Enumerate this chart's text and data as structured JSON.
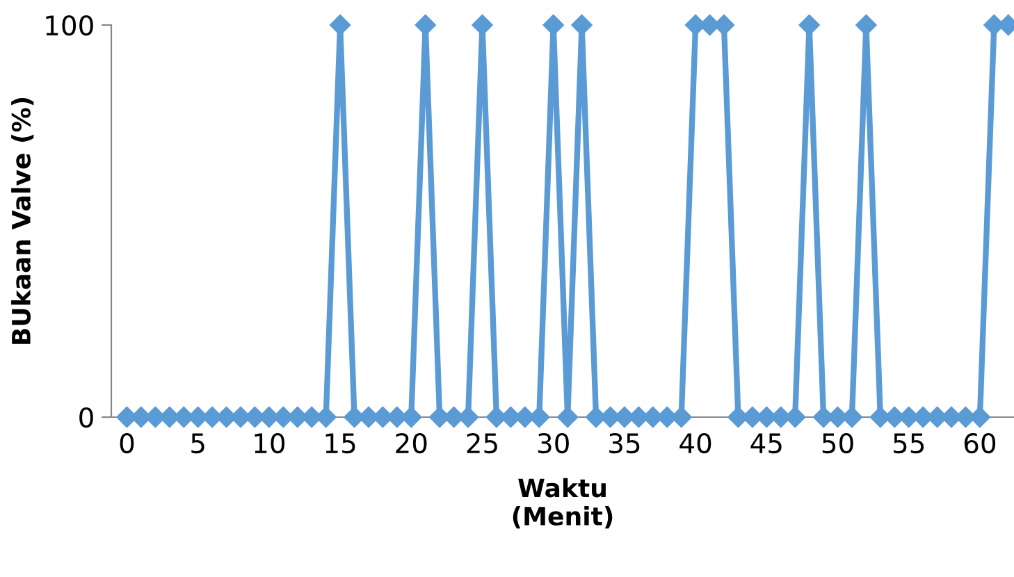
{
  "chart_data": {
    "type": "line",
    "xlabel": "Waktu\n(Menit)",
    "ylabel": "BUkaan Valve (%)",
    "categories": [
      "0",
      null,
      null,
      null,
      null,
      "5",
      null,
      null,
      null,
      null,
      "10",
      null,
      null,
      null,
      null,
      "15",
      null,
      null,
      null,
      null,
      "20",
      null,
      null,
      null,
      null,
      "25",
      null,
      null,
      null,
      null,
      "30",
      null,
      null,
      null,
      null,
      "35",
      null,
      null,
      null,
      null,
      "40",
      null,
      null,
      null,
      null,
      "45",
      null,
      null,
      null,
      null,
      "50",
      null,
      null,
      null,
      null,
      "55",
      null,
      null,
      null,
      null,
      "60",
      null,
      null
    ],
    "series": [
      {
        "color": "#5b9bd5",
        "values": [
          0,
          0,
          0,
          0,
          0,
          0,
          0,
          0,
          0,
          0,
          0,
          0,
          0,
          0,
          0,
          100,
          0,
          0,
          0,
          0,
          0,
          100,
          0,
          0,
          0,
          100,
          0,
          0,
          0,
          0,
          100,
          0,
          100,
          0,
          0,
          0,
          0,
          0,
          0,
          0,
          100,
          100,
          100,
          0,
          0,
          0,
          0,
          0,
          100,
          0,
          0,
          0,
          100,
          0,
          0,
          0,
          0,
          0,
          0,
          0,
          0,
          100,
          100
        ]
      }
    ],
    "ylim": [
      0,
      100
    ],
    "yticks": [
      0,
      100
    ],
    "grid": false,
    "legend": false,
    "marker": "diamond",
    "line_style": "solid"
  }
}
